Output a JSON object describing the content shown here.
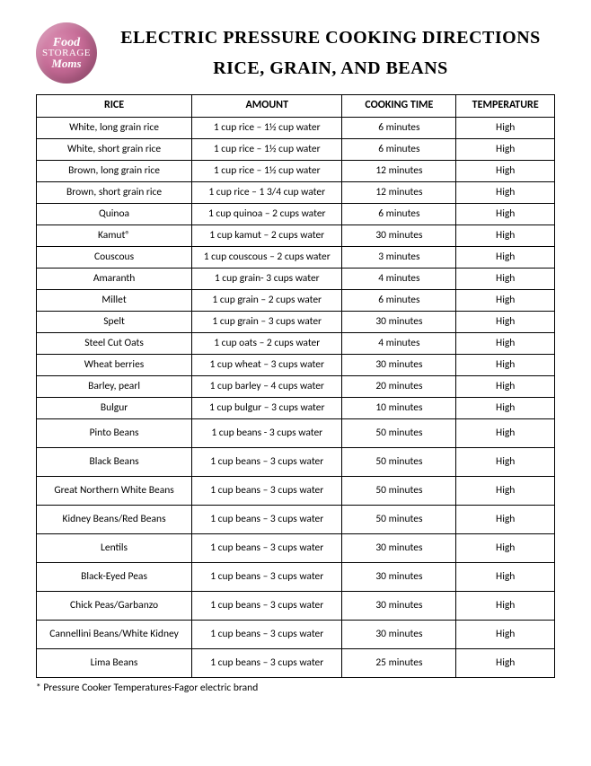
{
  "logo": {
    "line1": "Food",
    "line2": "STORAGE",
    "line3": "Moms"
  },
  "title1": "ELECTRIC PRESSURE COOKING DIRECTIONS",
  "title2": "RICE, GRAIN, AND BEANS",
  "headers": {
    "c1": "RICE",
    "c2": "AMOUNT",
    "c3": "COOKING TIME",
    "c4": "TEMPERATURE"
  },
  "rows": [
    {
      "h": "short",
      "c1": "White, long grain rice",
      "c2": "1 cup rice – 1½ cup water",
      "c3": "6 minutes",
      "c4": "High"
    },
    {
      "h": "short",
      "c1": "White, short grain rice",
      "c2": "1 cup rice – 1½ cup water",
      "c3": "6 minutes",
      "c4": "High"
    },
    {
      "h": "short",
      "c1": "Brown, long grain rice",
      "c2": "1 cup rice – 1½ cup water",
      "c3": "12 minutes",
      "c4": "High"
    },
    {
      "h": "short",
      "c1": "Brown, short grain rice",
      "c2": "1 cup rice – 1 3/4  cup water",
      "c3": "12 minutes",
      "c4": "High"
    },
    {
      "h": "short",
      "c1": "Quinoa",
      "c2": "1 cup quinoa – 2 cups water",
      "c3": "6 minutes",
      "c4": "High"
    },
    {
      "h": "short",
      "c1": "Kamut®",
      "c2": "1 cup kamut – 2 cups water",
      "c3": "30 minutes",
      "c4": "High"
    },
    {
      "h": "short",
      "c1": "Couscous",
      "c2": "1 cup couscous – 2 cups water",
      "c3": "3 minutes",
      "c4": "High"
    },
    {
      "h": "short",
      "c1": "Amaranth",
      "c2": "1 cup grain- 3 cups water",
      "c3": "4 minutes",
      "c4": "High"
    },
    {
      "h": "short",
      "c1": "Millet",
      "c2": "1 cup grain – 2 cups water",
      "c3": "6 minutes",
      "c4": "High"
    },
    {
      "h": "short",
      "c1": "Spelt",
      "c2": "1 cup grain – 3 cups water",
      "c3": "30 minutes",
      "c4": "High"
    },
    {
      "h": "short",
      "c1": "Steel Cut Oats",
      "c2": "1 cup oats – 2 cups water",
      "c3": "4 minutes",
      "c4": "High"
    },
    {
      "h": "short",
      "c1": "Wheat berries",
      "c2": "1 cup wheat – 3 cups water",
      "c3": "30 minutes",
      "c4": "High"
    },
    {
      "h": "short",
      "c1": "Barley, pearl",
      "c2": "1 cup barley – 4 cups water",
      "c3": "20 minutes",
      "c4": "High"
    },
    {
      "h": "short",
      "c1": "Bulgur",
      "c2": "1 cup bulgur – 3 cups water",
      "c3": "10 minutes",
      "c4": "High"
    },
    {
      "h": "tall",
      "c1": "Pinto Beans",
      "c2": "1 cup beans - 3  cups water",
      "c3": "50 minutes",
      "c4": "High"
    },
    {
      "h": "tall",
      "c1": "Black Beans",
      "c2": "1 cup beans – 3 cups water",
      "c3": "50 minutes",
      "c4": "High"
    },
    {
      "h": "tall",
      "c1": "Great Northern White Beans",
      "c2": "1 cup beans – 3 cups water",
      "c3": "50 minutes",
      "c4": "High"
    },
    {
      "h": "tall",
      "c1": "Kidney Beans/Red Beans",
      "c2": "1 cup beans – 3 cups water",
      "c3": "50 minutes",
      "c4": "High"
    },
    {
      "h": "tall",
      "c1": "Lentils",
      "c2": "1 cup beans – 3 cups water",
      "c3": "30 minutes",
      "c4": "High"
    },
    {
      "h": "tall",
      "c1": "Black-Eyed Peas",
      "c2": "1 cup beans – 3 cups water",
      "c3": "30 minutes",
      "c4": "High"
    },
    {
      "h": "tall",
      "c1": "Chick Peas/Garbanzo",
      "c2": "1 cup beans – 3 cups water",
      "c3": "30 minutes",
      "c4": "High"
    },
    {
      "h": "tall",
      "c1": "Cannellini Beans/White Kidney",
      "c2": "1 cup beans – 3 cups water",
      "c3": "30 minutes",
      "c4": "High"
    },
    {
      "h": "tall",
      "c1": "Lima Beans",
      "c2": "1 cup beans – 3 cups water",
      "c3": "25 minutes",
      "c4": "High"
    }
  ],
  "footnote": "* Pressure Cooker Temperatures-Fagor electric brand"
}
